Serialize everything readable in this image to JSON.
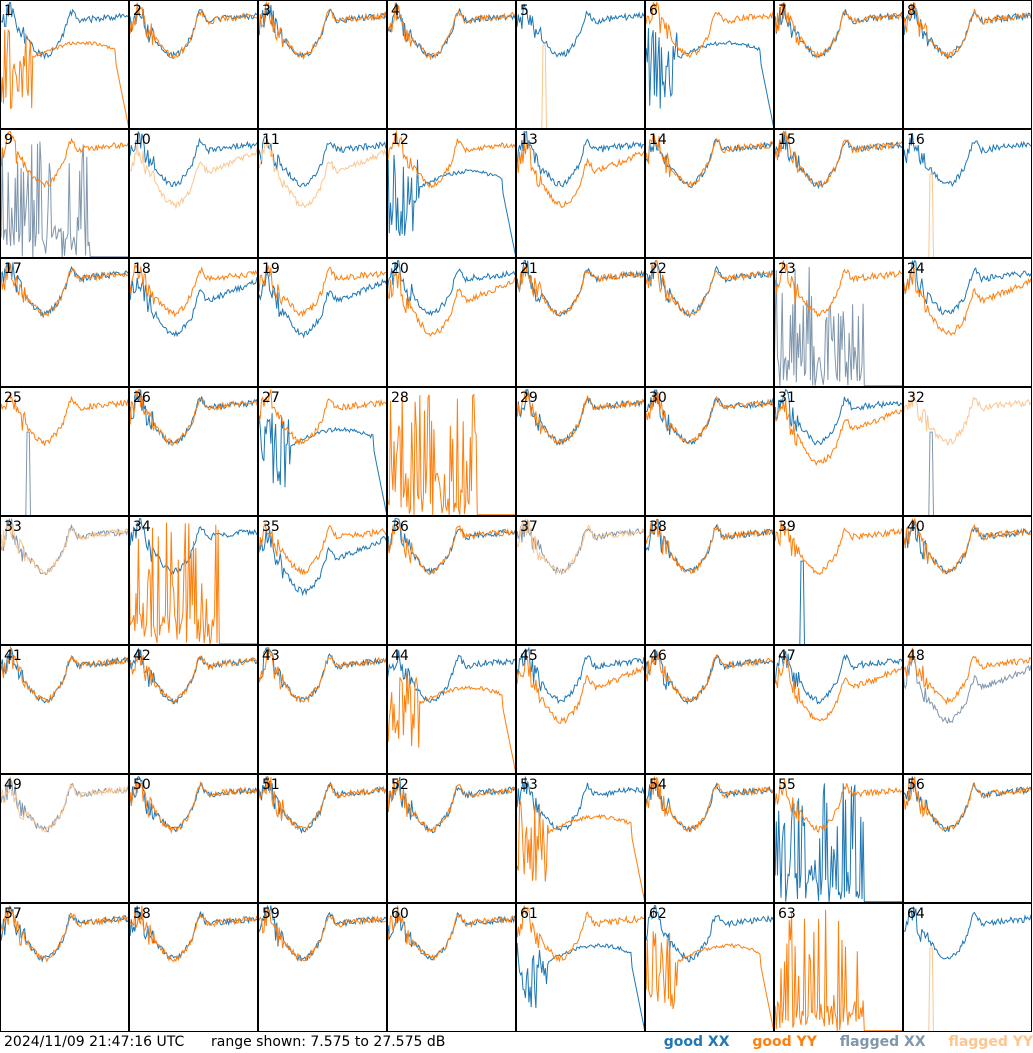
{
  "timestamp": "2024/11/09 21:47:16 UTC",
  "range_text": "range shown: 7.575 to 27.575 dB",
  "legend": [
    {
      "label": "good XX",
      "color": "#1f77b4"
    },
    {
      "label": "good YY",
      "color": "#ff7f0e"
    },
    {
      "label": "flagged XX",
      "color": "#8096ad"
    },
    {
      "label": "flagged YY",
      "color": "#fcc690"
    }
  ],
  "chart_data": {
    "type": "line",
    "title": "",
    "ylim": [
      7.575,
      27.575
    ],
    "yunit": "dB",
    "grid_layout": "8x8",
    "series_names": [
      "good XX",
      "good YY",
      "flagged XX",
      "flagged YY"
    ],
    "shape_codes": {
      "n": "normal bandpass",
      "l": "normal, shifted lower",
      "d": "noisy left edge then decaying droop",
      "s": "single spike",
      "b": "noise burst then zero",
      "z": "flat zero"
    },
    "panels": [
      {
        "id": "1",
        "xx": "n",
        "yy": "d",
        "flag": ""
      },
      {
        "id": "2",
        "xx": "n",
        "yy": "n",
        "flag": ""
      },
      {
        "id": "3",
        "xx": "n",
        "yy": "n",
        "flag": ""
      },
      {
        "id": "4",
        "xx": "n",
        "yy": "n",
        "flag": ""
      },
      {
        "id": "5",
        "xx": "n",
        "yy": "s",
        "flag": "yy"
      },
      {
        "id": "6",
        "xx": "d",
        "yy": "n",
        "flag": ""
      },
      {
        "id": "7",
        "xx": "n",
        "yy": "n",
        "flag": ""
      },
      {
        "id": "8",
        "xx": "n",
        "yy": "n",
        "flag": ""
      },
      {
        "id": "9",
        "xx": "b",
        "yy": "n",
        "flag": "xx"
      },
      {
        "id": "10",
        "xx": "n",
        "yy": "l",
        "flag": "yy"
      },
      {
        "id": "11",
        "xx": "n",
        "yy": "l",
        "flag": "yy"
      },
      {
        "id": "12",
        "xx": "d",
        "yy": "n",
        "flag": ""
      },
      {
        "id": "13",
        "xx": "n",
        "yy": "l",
        "flag": ""
      },
      {
        "id": "14",
        "xx": "n",
        "yy": "n",
        "flag": ""
      },
      {
        "id": "15",
        "xx": "n",
        "yy": "n",
        "flag": ""
      },
      {
        "id": "16",
        "xx": "n",
        "yy": "s",
        "flag": "yy"
      },
      {
        "id": "17",
        "xx": "n",
        "yy": "n",
        "flag": ""
      },
      {
        "id": "18",
        "xx": "l",
        "yy": "n",
        "flag": ""
      },
      {
        "id": "19",
        "xx": "l",
        "yy": "n",
        "flag": ""
      },
      {
        "id": "20",
        "xx": "n",
        "yy": "l",
        "flag": ""
      },
      {
        "id": "21",
        "xx": "n",
        "yy": "n",
        "flag": ""
      },
      {
        "id": "22",
        "xx": "n",
        "yy": "n",
        "flag": ""
      },
      {
        "id": "23",
        "xx": "b",
        "yy": "n",
        "flag": "xx"
      },
      {
        "id": "24",
        "xx": "n",
        "yy": "l",
        "flag": ""
      },
      {
        "id": "25",
        "xx": "s",
        "yy": "n",
        "flag": "xx"
      },
      {
        "id": "26",
        "xx": "n",
        "yy": "n",
        "flag": ""
      },
      {
        "id": "27",
        "xx": "d",
        "yy": "n",
        "flag": ""
      },
      {
        "id": "28",
        "xx": "z",
        "yy": "b",
        "flag": ""
      },
      {
        "id": "29",
        "xx": "n",
        "yy": "n",
        "flag": ""
      },
      {
        "id": "30",
        "xx": "n",
        "yy": "n",
        "flag": ""
      },
      {
        "id": "31",
        "xx": "n",
        "yy": "l",
        "flag": ""
      },
      {
        "id": "32",
        "xx": "s",
        "yy": "n",
        "flag": "xy"
      },
      {
        "id": "33",
        "xx": "n",
        "yy": "n",
        "flag": "xy"
      },
      {
        "id": "34",
        "xx": "n",
        "yy": "b",
        "flag": ""
      },
      {
        "id": "35",
        "xx": "l",
        "yy": "n",
        "flag": ""
      },
      {
        "id": "36",
        "xx": "n",
        "yy": "n",
        "flag": ""
      },
      {
        "id": "37",
        "xx": "n",
        "yy": "n",
        "flag": "xy"
      },
      {
        "id": "38",
        "xx": "n",
        "yy": "n",
        "flag": ""
      },
      {
        "id": "39",
        "xx": "s",
        "yy": "n",
        "flag": ""
      },
      {
        "id": "40",
        "xx": "n",
        "yy": "n",
        "flag": ""
      },
      {
        "id": "41",
        "xx": "n",
        "yy": "n",
        "flag": ""
      },
      {
        "id": "42",
        "xx": "n",
        "yy": "n",
        "flag": ""
      },
      {
        "id": "43",
        "xx": "n",
        "yy": "n",
        "flag": ""
      },
      {
        "id": "44",
        "xx": "n",
        "yy": "d",
        "flag": ""
      },
      {
        "id": "45",
        "xx": "n",
        "yy": "l",
        "flag": ""
      },
      {
        "id": "46",
        "xx": "n",
        "yy": "n",
        "flag": ""
      },
      {
        "id": "47",
        "xx": "n",
        "yy": "l",
        "flag": ""
      },
      {
        "id": "48",
        "xx": "l",
        "yy": "n",
        "flag": "xx"
      },
      {
        "id": "49",
        "xx": "n",
        "yy": "n",
        "flag": "xy"
      },
      {
        "id": "50",
        "xx": "n",
        "yy": "n",
        "flag": ""
      },
      {
        "id": "51",
        "xx": "n",
        "yy": "n",
        "flag": ""
      },
      {
        "id": "52",
        "xx": "n",
        "yy": "n",
        "flag": ""
      },
      {
        "id": "53",
        "xx": "n",
        "yy": "d",
        "flag": ""
      },
      {
        "id": "54",
        "xx": "n",
        "yy": "n",
        "flag": ""
      },
      {
        "id": "55",
        "xx": "b",
        "yy": "n",
        "flag": ""
      },
      {
        "id": "56",
        "xx": "n",
        "yy": "n",
        "flag": ""
      },
      {
        "id": "57",
        "xx": "n",
        "yy": "n",
        "flag": ""
      },
      {
        "id": "58",
        "xx": "n",
        "yy": "n",
        "flag": ""
      },
      {
        "id": "59",
        "xx": "n",
        "yy": "n",
        "flag": ""
      },
      {
        "id": "60",
        "xx": "n",
        "yy": "n",
        "flag": ""
      },
      {
        "id": "61",
        "xx": "d",
        "yy": "n",
        "flag": ""
      },
      {
        "id": "62",
        "xx": "n",
        "yy": "d",
        "flag": ""
      },
      {
        "id": "63",
        "xx": "z",
        "yy": "b",
        "flag": ""
      },
      {
        "id": "64",
        "xx": "n",
        "yy": "s",
        "flag": "yy"
      }
    ]
  }
}
